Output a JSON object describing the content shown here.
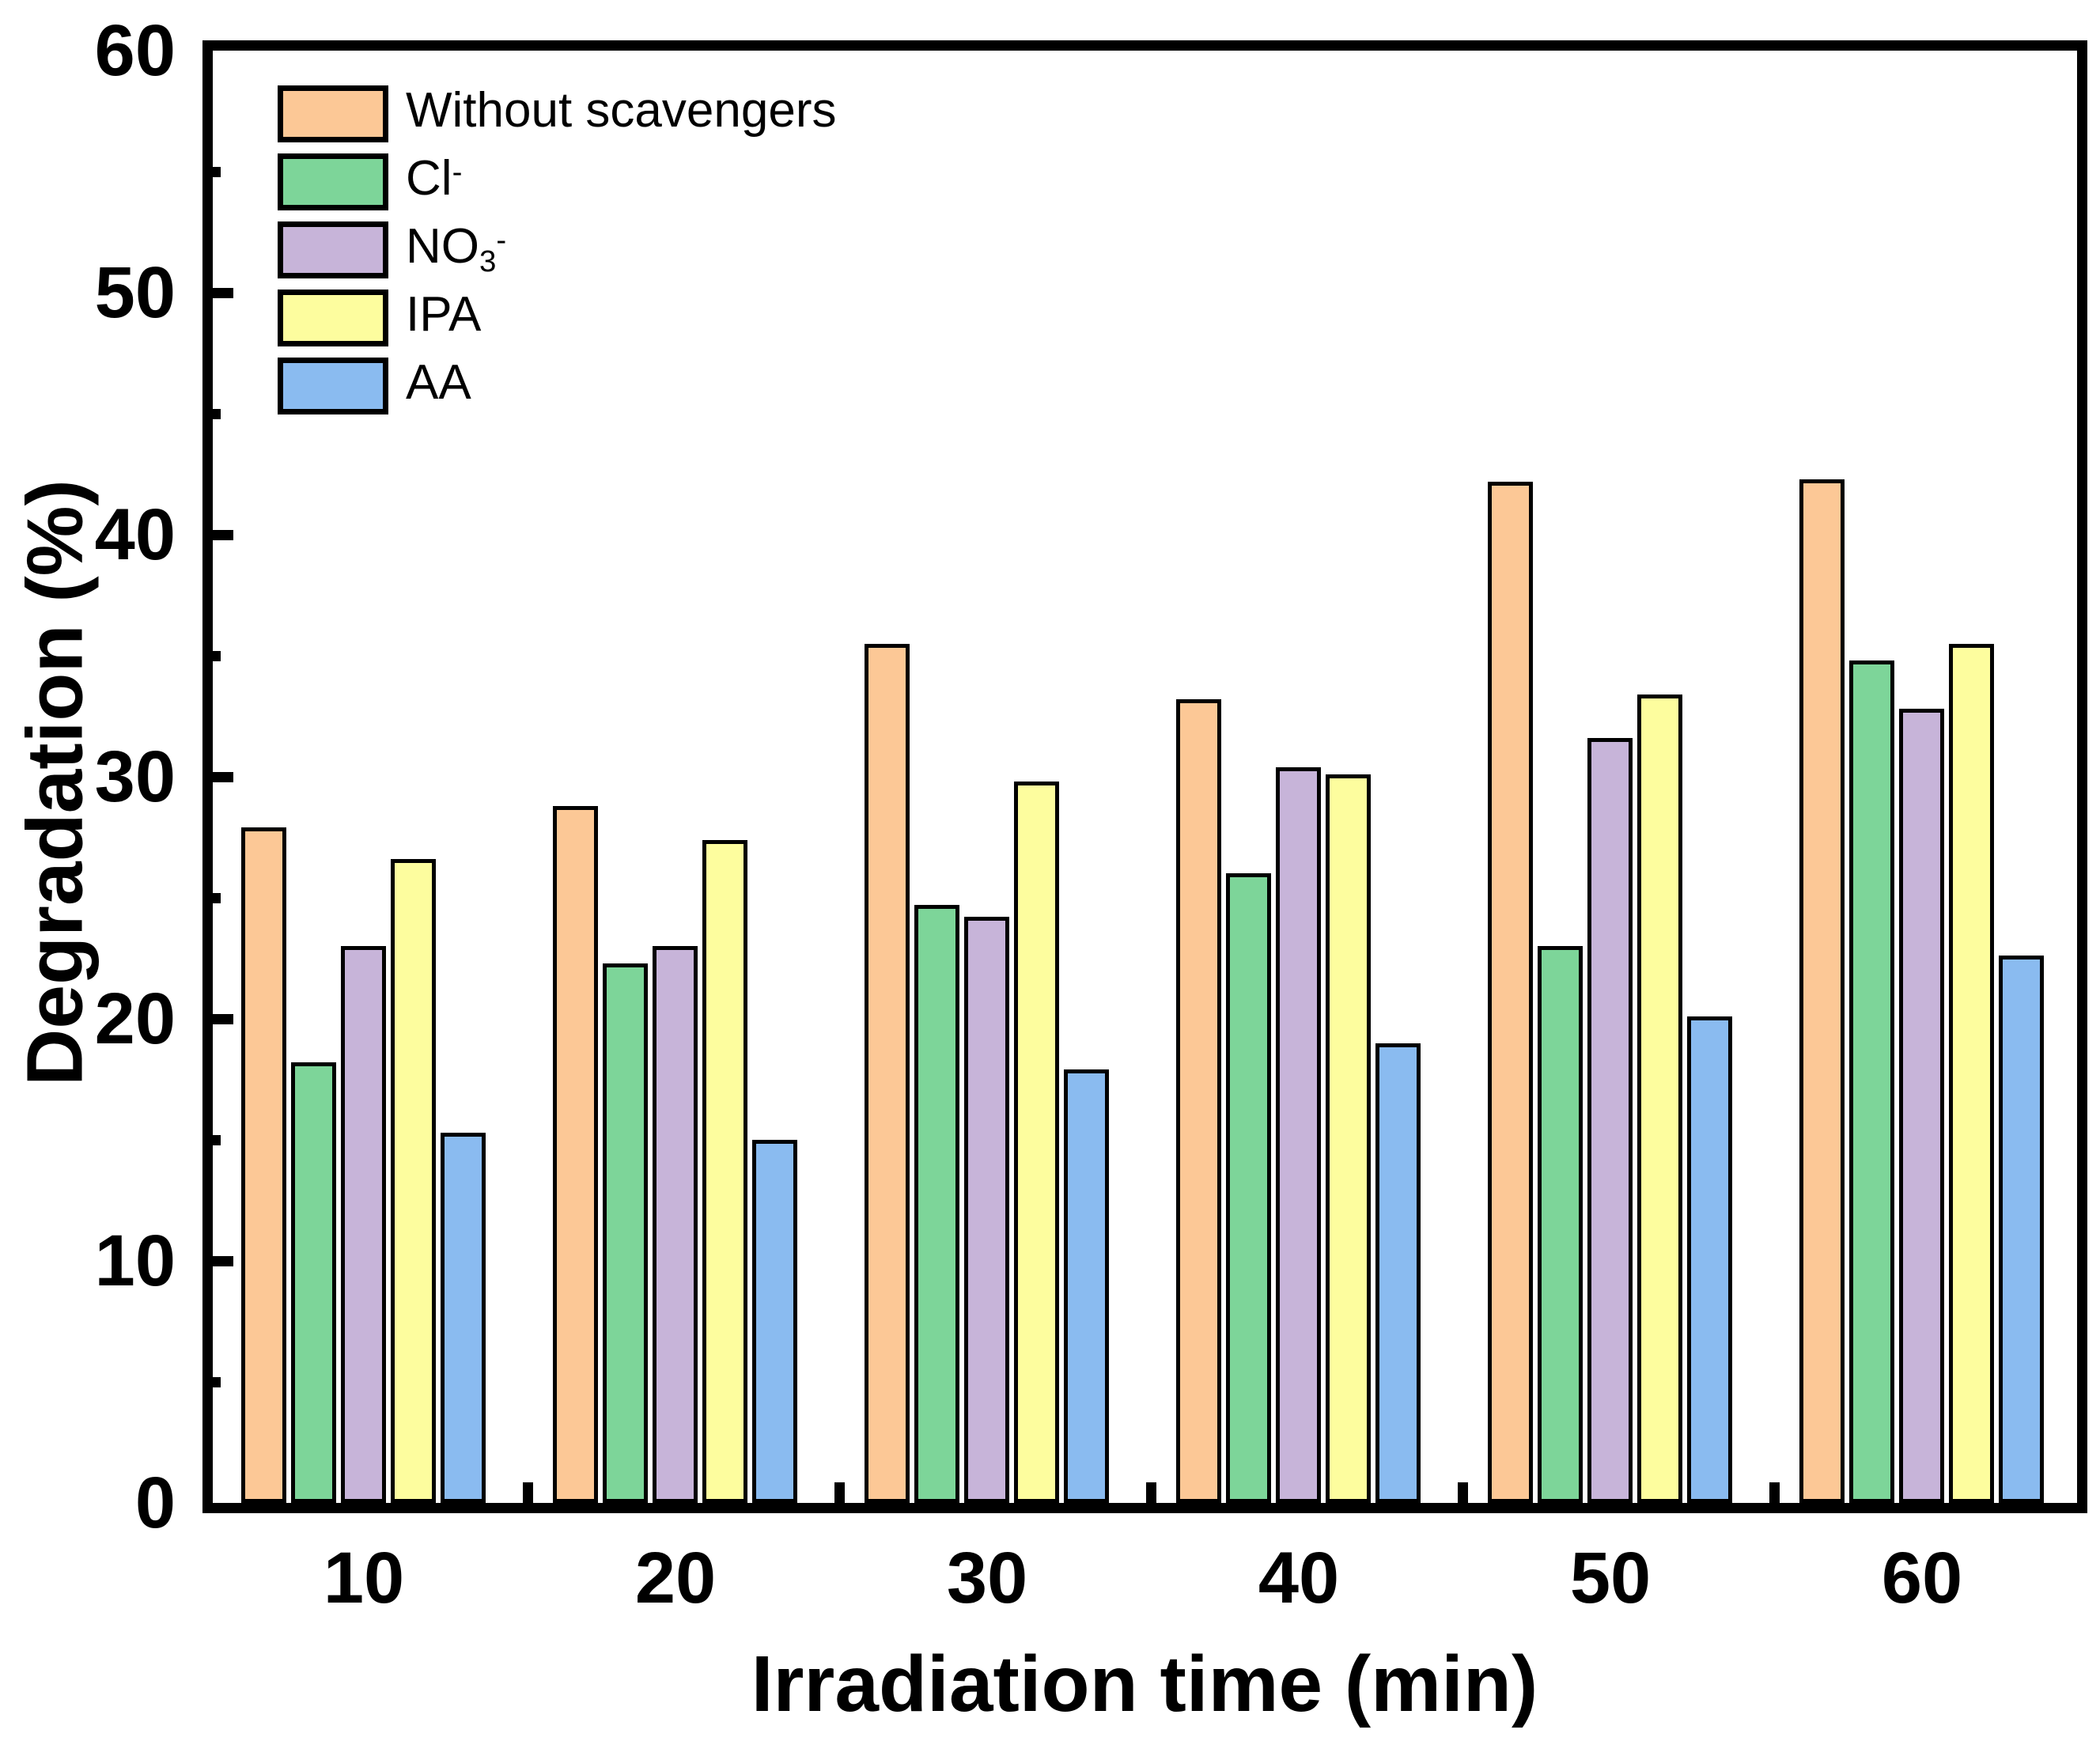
{
  "figure": {
    "xlabel": "Irradiation time (min)",
    "ylabel": "Degradation (%)"
  },
  "legend": {
    "position": "top-left",
    "items": [
      {
        "label": "Without scavengers",
        "base": "Without scavengers",
        "sub": "",
        "sup": "",
        "color": "#FCC896"
      },
      {
        "label": "Cl-",
        "base": "Cl",
        "sub": "",
        "sup": "-",
        "color": "#7DD599"
      },
      {
        "label": "NO3-",
        "base": "NO",
        "sub": "3",
        "sup": "-",
        "color": "#C7B4D9"
      },
      {
        "label": "IPA",
        "base": "IPA",
        "sub": "",
        "sup": "",
        "color": "#FDFD9E"
      },
      {
        "label": "AA",
        "base": "AA",
        "sub": "",
        "sup": "",
        "color": "#8ABBF0"
      }
    ]
  },
  "chart_data": {
    "type": "bar",
    "title": "",
    "categories": [
      "10",
      "20",
      "30",
      "40",
      "50",
      "60"
    ],
    "series": [
      {
        "name": "Without scavengers",
        "color": "#FCC896",
        "values": [
          27.9,
          28.8,
          35.5,
          33.2,
          42.2,
          42.3
        ]
      },
      {
        "name": "Cl-",
        "color": "#7DD599",
        "values": [
          18.2,
          22.3,
          24.7,
          26.0,
          23.0,
          34.8
        ]
      },
      {
        "name": "NO3-",
        "color": "#C7B4D9",
        "values": [
          23.0,
          23.0,
          24.2,
          30.4,
          31.6,
          32.8
        ]
      },
      {
        "name": "IPA",
        "color": "#FDFD9E",
        "values": [
          26.6,
          27.4,
          29.8,
          30.1,
          33.4,
          35.5
        ]
      },
      {
        "name": "AA",
        "color": "#8ABBF0",
        "values": [
          15.3,
          15.0,
          17.9,
          19.0,
          20.1,
          22.6
        ]
      }
    ],
    "xlabel": "Irradiation time (min)",
    "ylabel": "Degradation (%)",
    "ylim": [
      0,
      60
    ],
    "y_ticks": [
      0,
      10,
      20,
      30,
      40,
      50,
      60
    ],
    "y_minor_ticks": [
      5,
      15,
      25,
      35,
      45,
      55
    ],
    "grid": false,
    "legend_position": "top-left",
    "bar_edge_color": "#000000"
  }
}
